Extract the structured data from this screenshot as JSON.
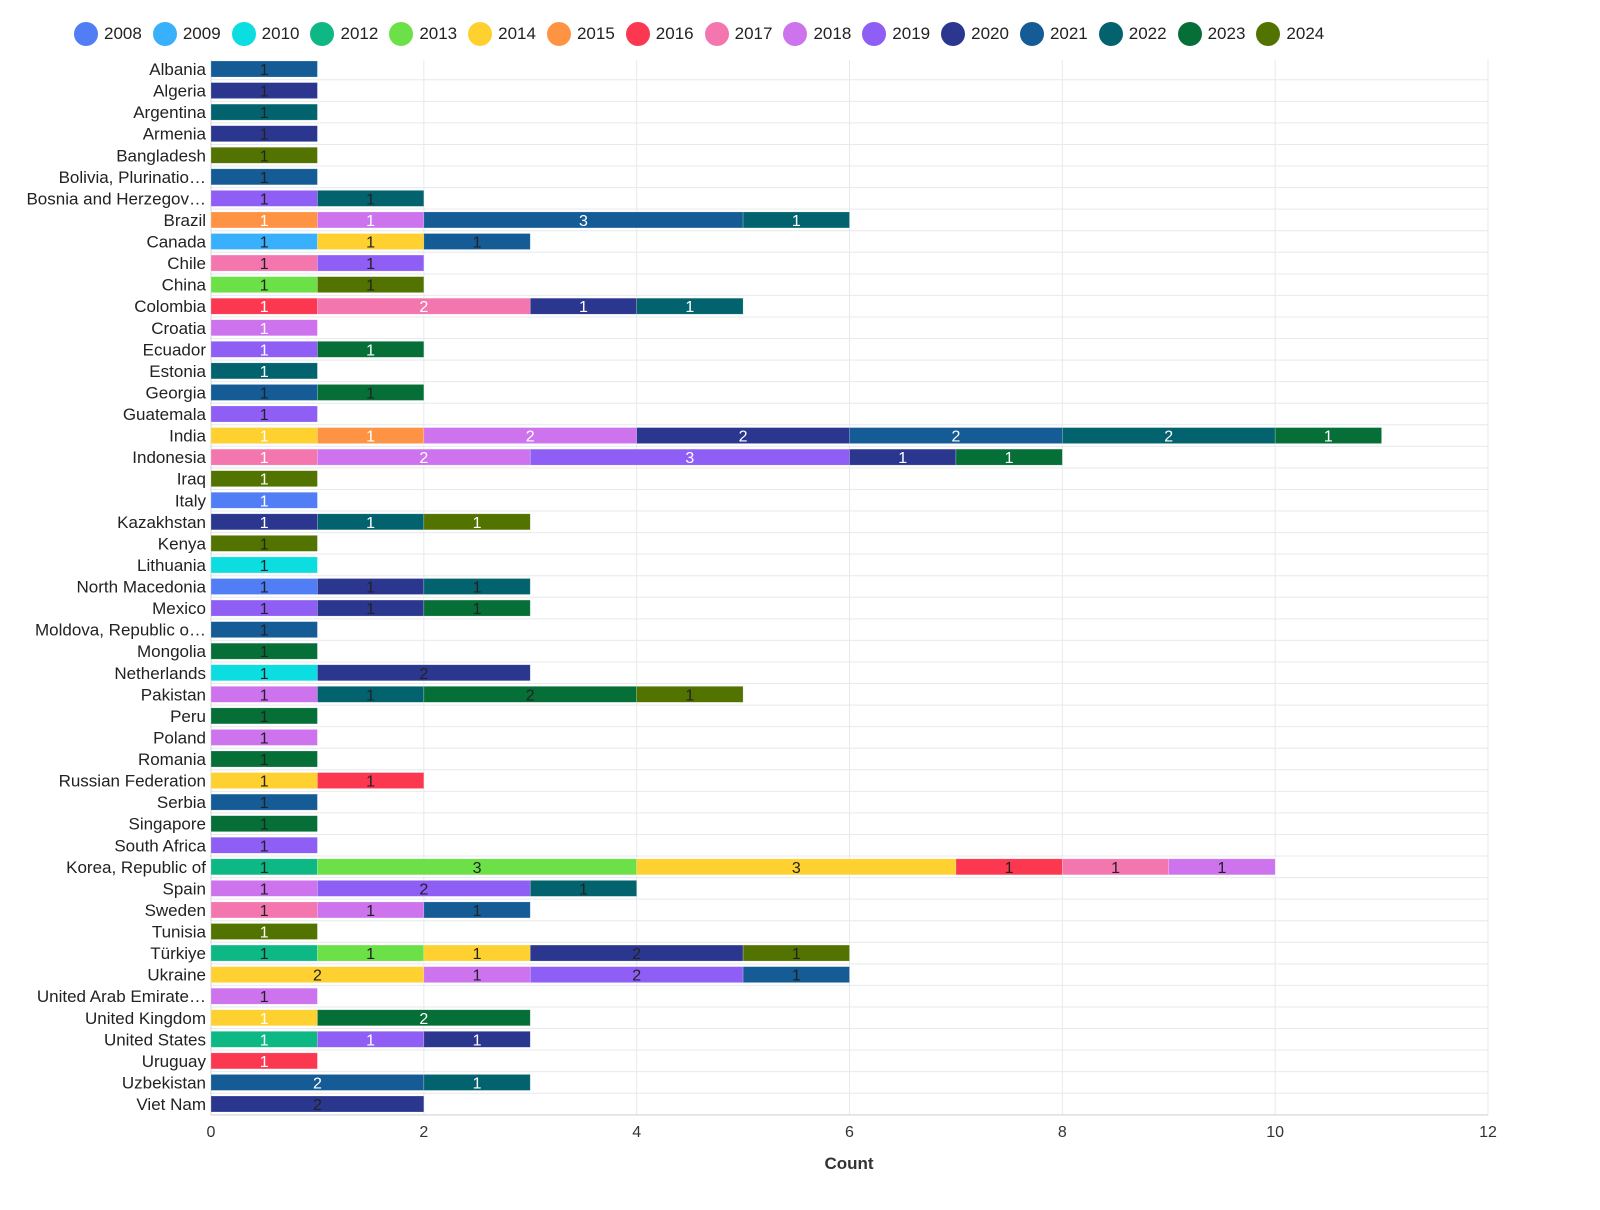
{
  "chart_data": {
    "type": "bar",
    "orientation": "horizontal",
    "stacked": true,
    "xlabel": "Count",
    "ylabel": "",
    "xlim": [
      0,
      12
    ],
    "xticks": [
      0,
      2,
      4,
      6,
      8,
      10,
      12
    ],
    "grid": true,
    "legend_position": "top",
    "years": [
      "2008",
      "2009",
      "2010",
      "2012",
      "2013",
      "2014",
      "2015",
      "2016",
      "2017",
      "2018",
      "2019",
      "2020",
      "2021",
      "2022",
      "2023",
      "2024"
    ],
    "colors": {
      "2008": "#527ef5",
      "2009": "#38b0fb",
      "2010": "#0bdde1",
      "2012": "#0db884",
      "2013": "#6be047",
      "2014": "#fed030",
      "2015": "#ff9344",
      "2016": "#fc3851",
      "2017": "#f377ae",
      "2018": "#cd73ee",
      "2019": "#8e5ef5",
      "2020": "#2b378e",
      "2021": "#155b95",
      "2022": "#02636f",
      "2023": "#066f37",
      "2024": "#537300"
    },
    "categories": [
      "Albania",
      "Algeria",
      "Argentina",
      "Armenia",
      "Bangladesh",
      "Bolivia, Plurinatio…",
      "Bosnia and Herzegov…",
      "Brazil",
      "Canada",
      "Chile",
      "China",
      "Colombia",
      "Croatia",
      "Ecuador",
      "Estonia",
      "Georgia",
      "Guatemala",
      "India",
      "Indonesia",
      "Iraq",
      "Italy",
      "Kazakhstan",
      "Kenya",
      "Lithuania",
      "North Macedonia",
      "Mexico",
      "Moldova, Republic o…",
      "Mongolia",
      "Netherlands",
      "Pakistan",
      "Peru",
      "Poland",
      "Romania",
      "Russian Federation",
      "Serbia",
      "Singapore",
      "South Africa",
      "Korea, Republic of",
      "Spain",
      "Sweden",
      "Tunisia",
      "Türkiye",
      "Ukraine",
      "United Arab Emirate…",
      "United Kingdom",
      "United States",
      "Uruguay",
      "Uzbekistan",
      "Viet Nam"
    ],
    "series_by_category": [
      {
        "2021": 1
      },
      {
        "2020": 1
      },
      {
        "2022": 1
      },
      {
        "2020": 1
      },
      {
        "2024": 1
      },
      {
        "2021": 1
      },
      {
        "2019": 1,
        "2022": 1
      },
      {
        "2015": 1,
        "2018": 1,
        "2021": 3,
        "2022": 1
      },
      {
        "2009": 1,
        "2014": 1,
        "2021": 1
      },
      {
        "2017": 1,
        "2019": 1
      },
      {
        "2013": 1,
        "2024": 1
      },
      {
        "2016": 1,
        "2017": 2,
        "2020": 1,
        "2022": 1
      },
      {
        "2018": 1
      },
      {
        "2019": 1,
        "2023": 1
      },
      {
        "2022": 1
      },
      {
        "2021": 1,
        "2023": 1
      },
      {
        "2019": 1
      },
      {
        "2014": 1,
        "2015": 1,
        "2018": 2,
        "2020": 2,
        "2021": 2,
        "2022": 2,
        "2023": 1
      },
      {
        "2017": 1,
        "2018": 2,
        "2019": 3,
        "2020": 1,
        "2023": 1
      },
      {
        "2024": 1
      },
      {
        "2008": 1
      },
      {
        "2020": 1,
        "2022": 1,
        "2024": 1
      },
      {
        "2024": 1
      },
      {
        "2010": 1
      },
      {
        "2008": 1,
        "2020": 1,
        "2022": 1
      },
      {
        "2019": 1,
        "2020": 1,
        "2023": 1
      },
      {
        "2021": 1
      },
      {
        "2023": 1
      },
      {
        "2010": 1,
        "2020": 2
      },
      {
        "2018": 1,
        "2022": 1,
        "2023": 2,
        "2024": 1
      },
      {
        "2023": 1
      },
      {
        "2018": 1
      },
      {
        "2023": 1
      },
      {
        "2014": 1,
        "2016": 1
      },
      {
        "2021": 1
      },
      {
        "2023": 1
      },
      {
        "2019": 1
      },
      {
        "2012": 1,
        "2013": 3,
        "2014": 3,
        "2016": 1,
        "2017": 1,
        "2018": 1
      },
      {
        "2018": 1,
        "2019": 2,
        "2022": 1
      },
      {
        "2017": 1,
        "2018": 1,
        "2021": 1
      },
      {
        "2024": 1
      },
      {
        "2012": 1,
        "2013": 1,
        "2014": 1,
        "2020": 2,
        "2024": 1
      },
      {
        "2014": 2,
        "2018": 1,
        "2019": 2,
        "2021": 1
      },
      {
        "2018": 1
      },
      {
        "2014": 1,
        "2023": 2
      },
      {
        "2012": 1,
        "2019": 1,
        "2020": 1
      },
      {
        "2016": 1
      },
      {
        "2021": 2,
        "2022": 1
      },
      {
        "2020": 2
      }
    ]
  }
}
